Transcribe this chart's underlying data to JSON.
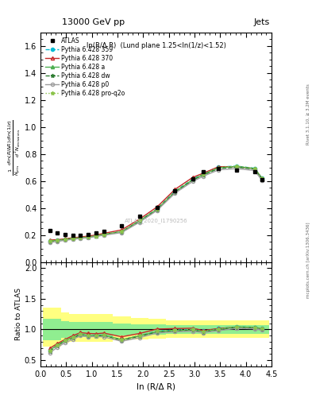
{
  "title_top": "13000 GeV pp",
  "title_right": "Jets",
  "plot_title": "ln(R/Δ R)  (Lund plane 1.25<ln(1/z)<1.52)",
  "ylabel_main": "$\\frac{1}{N_\\mathrm{jets}}\\frac{d\\ln(R/\\Delta R)\\,d\\ln(1/z)}{d^2 N_\\mathrm{emissions}}$",
  "ylabel_ratio": "Ratio to ATLAS",
  "xlabel": "ln (R/Δ R)",
  "watermark": "ATLAS_2020_I1790256",
  "right_label": "mcplots.cern.ch [arXiv:1306.3436]",
  "right_label2": "Rivet 3.1.10, ≥ 3.2M events",
  "xlim": [
    0,
    4.5
  ],
  "ylim_main": [
    0,
    1.7
  ],
  "ylim_ratio": [
    0.4,
    2.1
  ],
  "atlas_x": [
    0.18,
    0.32,
    0.48,
    0.63,
    0.78,
    0.92,
    1.08,
    1.23,
    1.58,
    1.93,
    2.27,
    2.62,
    2.97,
    3.17,
    3.47,
    3.82,
    4.17,
    4.32
  ],
  "atlas_y": [
    0.235,
    0.215,
    0.205,
    0.2,
    0.195,
    0.205,
    0.215,
    0.225,
    0.27,
    0.34,
    0.405,
    0.53,
    0.615,
    0.67,
    0.695,
    0.68,
    0.67,
    0.61
  ],
  "p359_x": [
    0.18,
    0.32,
    0.48,
    0.63,
    0.78,
    0.92,
    1.08,
    1.23,
    1.58,
    1.93,
    2.27,
    2.62,
    2.97,
    3.17,
    3.47,
    3.82,
    4.17,
    4.32
  ],
  "p359_y": [
    0.155,
    0.16,
    0.168,
    0.175,
    0.18,
    0.185,
    0.195,
    0.205,
    0.225,
    0.305,
    0.395,
    0.525,
    0.615,
    0.655,
    0.705,
    0.71,
    0.695,
    0.62
  ],
  "p370_x": [
    0.18,
    0.32,
    0.48,
    0.63,
    0.78,
    0.92,
    1.08,
    1.23,
    1.58,
    1.93,
    2.27,
    2.62,
    2.97,
    3.17,
    3.47,
    3.82,
    4.17,
    4.32
  ],
  "p370_y": [
    0.163,
    0.165,
    0.172,
    0.18,
    0.185,
    0.192,
    0.2,
    0.212,
    0.238,
    0.318,
    0.408,
    0.538,
    0.628,
    0.658,
    0.706,
    0.706,
    0.692,
    0.618
  ],
  "pa_x": [
    0.18,
    0.32,
    0.48,
    0.63,
    0.78,
    0.92,
    1.08,
    1.23,
    1.58,
    1.93,
    2.27,
    2.62,
    2.97,
    3.17,
    3.47,
    3.82,
    4.17,
    4.32
  ],
  "pa_y": [
    0.155,
    0.16,
    0.168,
    0.175,
    0.18,
    0.185,
    0.193,
    0.205,
    0.225,
    0.305,
    0.39,
    0.52,
    0.61,
    0.648,
    0.698,
    0.708,
    0.692,
    0.618
  ],
  "pdw_x": [
    0.18,
    0.32,
    0.48,
    0.63,
    0.78,
    0.92,
    1.08,
    1.23,
    1.58,
    1.93,
    2.27,
    2.62,
    2.97,
    3.17,
    3.47,
    3.82,
    4.17,
    4.32
  ],
  "pdw_y": [
    0.152,
    0.158,
    0.166,
    0.173,
    0.178,
    0.183,
    0.191,
    0.203,
    0.223,
    0.303,
    0.388,
    0.518,
    0.608,
    0.643,
    0.693,
    0.703,
    0.688,
    0.613
  ],
  "pp0_x": [
    0.18,
    0.32,
    0.48,
    0.63,
    0.78,
    0.92,
    1.08,
    1.23,
    1.58,
    1.93,
    2.27,
    2.62,
    2.97,
    3.17,
    3.47,
    3.82,
    4.17,
    4.32
  ],
  "pp0_y": [
    0.145,
    0.152,
    0.161,
    0.168,
    0.175,
    0.181,
    0.19,
    0.198,
    0.218,
    0.295,
    0.382,
    0.51,
    0.598,
    0.635,
    0.683,
    0.692,
    0.678,
    0.603
  ],
  "pq2o_x": [
    0.18,
    0.32,
    0.48,
    0.63,
    0.78,
    0.92,
    1.08,
    1.23,
    1.58,
    1.93,
    2.27,
    2.62,
    2.97,
    3.17,
    3.47,
    3.82,
    4.17,
    4.32
  ],
  "pq2o_y": [
    0.155,
    0.16,
    0.168,
    0.175,
    0.18,
    0.185,
    0.193,
    0.205,
    0.225,
    0.308,
    0.395,
    0.525,
    0.615,
    0.65,
    0.7,
    0.71,
    0.695,
    0.62
  ],
  "band_x_edges": [
    0.05,
    0.25,
    0.4,
    0.555,
    0.705,
    0.85,
    1.0,
    1.155,
    1.405,
    1.755,
    2.1,
    2.445,
    2.795,
    3.07,
    3.32,
    3.645,
    3.995,
    4.245,
    4.45
  ],
  "band_yellow_lo": [
    0.72,
    0.72,
    0.78,
    0.8,
    0.8,
    0.8,
    0.8,
    0.8,
    0.82,
    0.84,
    0.85,
    0.87,
    0.87,
    0.87,
    0.87,
    0.87,
    0.87,
    0.87
  ],
  "band_yellow_hi": [
    1.35,
    1.35,
    1.28,
    1.25,
    1.25,
    1.25,
    1.25,
    1.25,
    1.22,
    1.19,
    1.17,
    1.15,
    1.15,
    1.15,
    1.15,
    1.15,
    1.15,
    1.15
  ],
  "band_green_lo": [
    0.83,
    0.83,
    0.87,
    0.88,
    0.88,
    0.88,
    0.88,
    0.88,
    0.9,
    0.91,
    0.92,
    0.93,
    0.93,
    0.93,
    0.93,
    0.93,
    0.93,
    0.93
  ],
  "band_green_hi": [
    1.17,
    1.17,
    1.13,
    1.12,
    1.12,
    1.12,
    1.12,
    1.12,
    1.1,
    1.09,
    1.08,
    1.07,
    1.07,
    1.07,
    1.07,
    1.07,
    1.07,
    1.07
  ],
  "color_359": "#00bcd4",
  "color_370": "#c62828",
  "color_a": "#4caf50",
  "color_dw": "#2e7d32",
  "color_p0": "#9e9e9e",
  "color_q2o": "#8bc34a",
  "color_yellow": "#ffff80",
  "color_green": "#90ee90"
}
